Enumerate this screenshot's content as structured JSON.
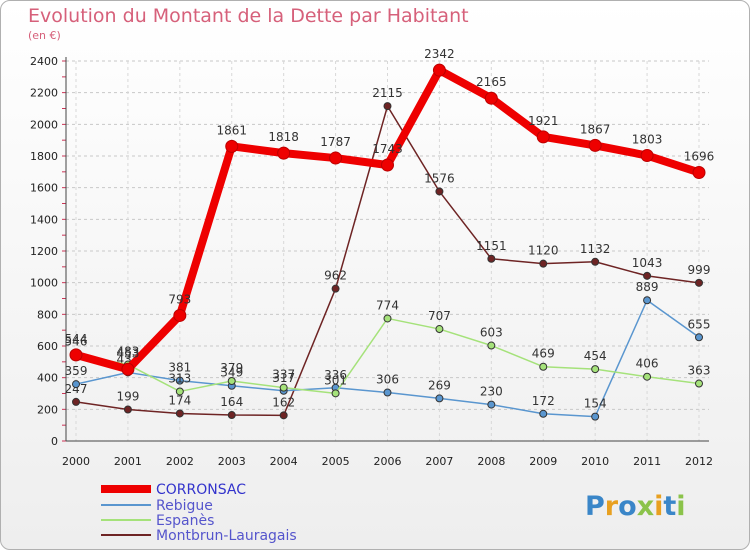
{
  "title": "Evolution du Montant de la Dette par Habitant",
  "subtitle": "(en €)",
  "logo": "Proxiti",
  "chart_data": {
    "type": "line",
    "title": "Evolution du Montant de la Dette par Habitant",
    "subtitle": "(en €)",
    "xlabel": "",
    "ylabel": "",
    "x": [
      "2000",
      "2001",
      "2002",
      "2003",
      "2004",
      "2005",
      "2006",
      "2007",
      "2008",
      "2009",
      "2010",
      "2011",
      "2012"
    ],
    "ylim": [
      0,
      2400
    ],
    "yticks": [
      0,
      200,
      400,
      600,
      800,
      1000,
      1200,
      1400,
      1600,
      1800,
      2000,
      2200,
      2400
    ],
    "grid": true,
    "legend_position": "bottom-left",
    "series": [
      {
        "name": "CORRONSAC",
        "color": "#ee0000",
        "values": [
          544,
          453,
          793,
          1861,
          1818,
          1787,
          1743,
          2342,
          2165,
          1921,
          1867,
          1803,
          1696
        ]
      },
      {
        "name": "Rebigue",
        "color": "#5a96cf",
        "values": [
          359,
          433,
          381,
          349,
          317,
          336,
          306,
          269,
          230,
          172,
          154,
          889,
          655
        ]
      },
      {
        "name": "Espanès",
        "color": "#a5e27a",
        "values": [
          546,
          483,
          313,
          379,
          337,
          301,
          774,
          707,
          603,
          469,
          454,
          406,
          363
        ]
      },
      {
        "name": "Montbrun-Lauragais",
        "color": "#6e2424",
        "values": [
          247,
          199,
          174,
          164,
          162,
          962,
          2115,
          1576,
          1151,
          1120,
          1132,
          1043,
          999
        ]
      }
    ]
  }
}
